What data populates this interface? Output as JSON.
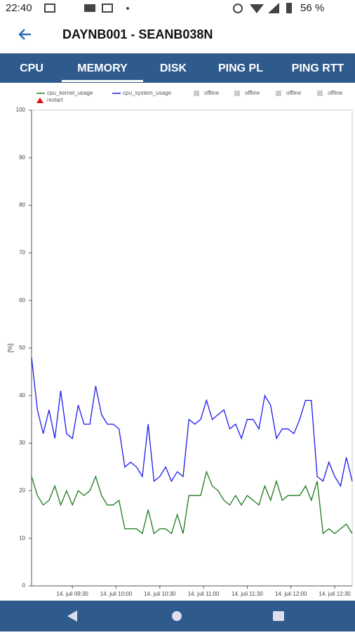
{
  "status_bar": {
    "time": "22:40",
    "battery": "56 %"
  },
  "header": {
    "title": "DAYNB001 - SEANB038N"
  },
  "tabs": {
    "items": [
      "CPU",
      "MEMORY",
      "DISK",
      "PING PL",
      "PING RTT"
    ],
    "selected": "MEMORY"
  },
  "chart_data": {
    "type": "line",
    "ylabel": "[%]",
    "x": [
      "09:02",
      "09:06",
      "09:10",
      "09:14",
      "09:18",
      "09:22",
      "09:26",
      "09:30",
      "09:34",
      "09:38",
      "09:42",
      "09:46",
      "09:50",
      "09:54",
      "09:58",
      "10:02",
      "10:06",
      "10:10",
      "10:14",
      "10:18",
      "10:22",
      "10:26",
      "10:30",
      "10:34",
      "10:38",
      "10:42",
      "10:46",
      "10:50",
      "10:54",
      "10:58",
      "11:02",
      "11:06",
      "11:10",
      "11:14",
      "11:18",
      "11:22",
      "11:26",
      "11:30",
      "11:34",
      "11:38",
      "11:42",
      "11:46",
      "11:50",
      "11:54",
      "11:58",
      "12:02",
      "12:06",
      "12:10",
      "12:14",
      "12:18",
      "12:22",
      "12:26",
      "12:30",
      "12:34",
      "12:38",
      "12:42"
    ],
    "series": [
      {
        "name": "cpu_kernel_usage",
        "color": "#1a7a1a",
        "values": [
          23,
          19,
          17,
          18,
          21,
          17,
          20,
          17,
          20,
          19,
          20,
          23,
          19,
          17,
          17,
          18,
          12,
          12,
          12,
          11,
          16,
          11,
          12,
          12,
          11,
          15,
          11,
          19,
          19,
          19,
          24,
          21,
          20,
          18,
          17,
          19,
          17,
          19,
          18,
          17,
          21,
          18,
          22,
          18,
          19,
          19,
          19,
          21,
          18,
          22,
          11,
          12,
          11,
          12,
          13,
          11
        ]
      },
      {
        "name": "cpu_system_usage",
        "color": "#1a1aee",
        "values": [
          48,
          37,
          32,
          37,
          31,
          41,
          32,
          31,
          38,
          34,
          34,
          42,
          36,
          34,
          34,
          33,
          25,
          26,
          25,
          23,
          34,
          22,
          23,
          25,
          22,
          24,
          23,
          35,
          34,
          35,
          39,
          35,
          36,
          37,
          33,
          34,
          31,
          35,
          35,
          33,
          40,
          38,
          31,
          33,
          33,
          32,
          35,
          39,
          39,
          23,
          22,
          26,
          23,
          21,
          27,
          22
        ]
      }
    ],
    "legend_items": [
      {
        "name": "offline",
        "color": "#cccccc"
      },
      {
        "name": "offline",
        "color": "#cccccc"
      },
      {
        "name": "offline",
        "color": "#cccccc"
      },
      {
        "name": "offline",
        "color": "#cccccc"
      },
      {
        "name": "restart",
        "color": "#e01010"
      }
    ],
    "xlim": [
      "09:02",
      "12:42"
    ],
    "xticks": [
      {
        "value": "09:30",
        "label": "14. juli 09:30"
      },
      {
        "value": "10:00",
        "label": "14. juli 10:00"
      },
      {
        "value": "10:30",
        "label": "14. juli 10:30"
      },
      {
        "value": "11:00",
        "label": "14. juli 11:00"
      },
      {
        "value": "11:30",
        "label": "14. juli 11:30"
      },
      {
        "value": "12:00",
        "label": "14. juli 12:00"
      },
      {
        "value": "12:30",
        "label": "14. juli 12:30"
      }
    ],
    "ylim": [
      0,
      100
    ],
    "yticks": [
      0,
      10,
      20,
      30,
      40,
      50,
      60,
      70,
      80,
      90,
      100
    ]
  }
}
